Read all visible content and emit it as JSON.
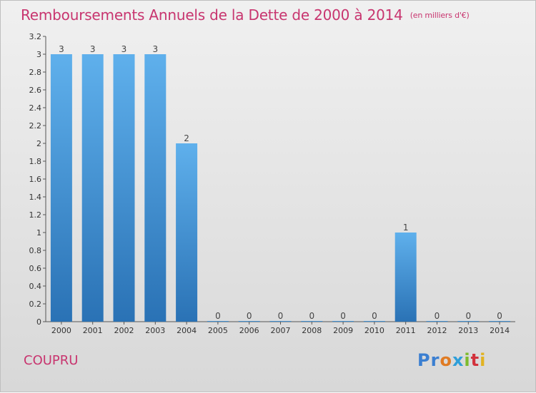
{
  "chart_data": {
    "type": "bar",
    "title": "Remboursements Annuels de la Dette de 2000 à 2014",
    "unit": "(en milliers d'€)",
    "categories": [
      "2000",
      "2001",
      "2002",
      "2003",
      "2004",
      "2005",
      "2006",
      "2007",
      "2008",
      "2009",
      "2010",
      "2011",
      "2012",
      "2013",
      "2014"
    ],
    "values": [
      3,
      3,
      3,
      3,
      2,
      0,
      0,
      0,
      0,
      0,
      0,
      1,
      0,
      0,
      0
    ],
    "value_labels": [
      "3",
      "3",
      "3",
      "3",
      "2",
      "0",
      "0",
      "0",
      "0",
      "0",
      "0",
      "1",
      "0",
      "0",
      "0"
    ],
    "y_ticks": [
      {
        "v": 0,
        "label": "0"
      },
      {
        "v": 0.2,
        "label": "0.2"
      },
      {
        "v": 0.4,
        "label": "0.4"
      },
      {
        "v": 0.6,
        "label": "0.6"
      },
      {
        "v": 0.8,
        "label": "0.8"
      },
      {
        "v": 1,
        "label": "1"
      },
      {
        "v": 1.2,
        "label": "1.2"
      },
      {
        "v": 1.4,
        "label": "1.4"
      },
      {
        "v": 1.6,
        "label": "1.6"
      },
      {
        "v": 1.8,
        "label": "1.8"
      },
      {
        "v": 2,
        "label": "2"
      },
      {
        "v": 2.2,
        "label": "2.2"
      },
      {
        "v": 2.4,
        "label": "2.4"
      },
      {
        "v": 2.6,
        "label": "2.6"
      },
      {
        "v": 2.8,
        "label": "2.8"
      },
      {
        "v": 3,
        "label": "3"
      },
      {
        "v": 3.2,
        "label": "3.2"
      }
    ],
    "ylim": [
      0,
      3.2
    ],
    "xlabel": "",
    "ylabel": "",
    "grid": false,
    "bar_color": "#3d8fd6"
  },
  "commune": "COUPRU",
  "logo": [
    "P",
    "r",
    "o",
    "x",
    "i",
    "t",
    "i"
  ]
}
